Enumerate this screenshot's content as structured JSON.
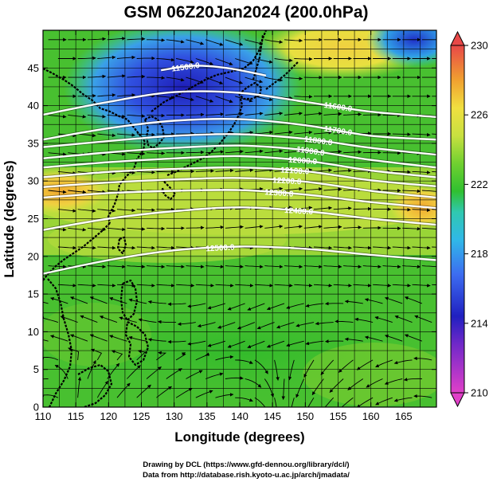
{
  "title": "GSM 06Z20Jan2024 (200.0hPa)",
  "xlabel": "Longitude (degrees)",
  "ylabel": "Latitude  (degrees)",
  "credits": [
    "Drawing by DCL (https://www.gfd-dennou.org/library/dcl/)",
    "Data from http://database.rish.kyoto-u.ac.jp/arch/jmadata/"
  ],
  "colors": {
    "min_magenta": "#e040c8",
    "dark_blue": "#2020c0",
    "blue": "#3c6cf0",
    "cyan": "#30c8d8",
    "green": "#30c030",
    "light_green": "#90d830",
    "yellow": "#f0e040",
    "orange": "#f0a030",
    "max_red": "#e84848",
    "contour": "#ffffff",
    "coastline": "#000000"
  },
  "chart_data": {
    "type": "heatmap",
    "map_type": "temperature shading with geopotential height contours and wind streamlines",
    "xlim": [
      110,
      170
    ],
    "ylim": [
      0,
      50
    ],
    "xticks": [
      110,
      115,
      120,
      125,
      130,
      135,
      140,
      145,
      150,
      155,
      160,
      165
    ],
    "yticks": [
      0,
      5,
      10,
      15,
      20,
      25,
      30,
      35,
      40,
      45
    ],
    "grid": true,
    "colorbar": {
      "min": 210,
      "max": 230,
      "ticks": [
        210,
        214,
        218,
        222,
        226,
        230
      ],
      "placement": "right",
      "extend": "both"
    },
    "contour_labels": [
      "11500.0",
      "11600.0",
      "11700.0",
      "11800.0",
      "11900.0",
      "12000.0",
      "12100.0",
      "12200.0",
      "12300.0",
      "12400.0",
      "12500.0"
    ],
    "contours": [
      {
        "level": "11500.0",
        "lon": [
          128,
          133,
          138,
          144
        ],
        "lat": [
          44.7,
          45.3,
          45.0,
          44.0
        ]
      },
      {
        "level": "11600.0",
        "lon": [
          110,
          120,
          130,
          140,
          150,
          160,
          170
        ],
        "lat": [
          38.8,
          40.5,
          41.8,
          41.7,
          40.5,
          39.2,
          38.5
        ]
      },
      {
        "level": "11700.0",
        "lon": [
          110,
          120,
          130,
          140,
          150,
          160,
          170
        ],
        "lat": [
          35.5,
          37.0,
          38.0,
          38.2,
          37.4,
          36.0,
          35.5
        ]
      },
      {
        "level": "11800.0",
        "lon": [
          110,
          120,
          130,
          140,
          150,
          160,
          170
        ],
        "lat": [
          34.5,
          35.3,
          36.0,
          36.2,
          35.6,
          34.4,
          33.5
        ]
      },
      {
        "level": "11900.0",
        "lon": [
          110,
          120,
          130,
          140,
          150,
          160,
          170
        ],
        "lat": [
          33.0,
          33.8,
          34.4,
          34.7,
          34.1,
          32.8,
          31.8
        ]
      },
      {
        "level": "12000.0",
        "lon": [
          110,
          120,
          130,
          140,
          150,
          160,
          170
        ],
        "lat": [
          31.8,
          32.5,
          33.0,
          33.3,
          32.7,
          31.4,
          30.5
        ]
      },
      {
        "level": "12100.0",
        "lon": [
          110,
          120,
          130,
          140,
          150,
          160,
          170
        ],
        "lat": [
          30.5,
          31.2,
          31.6,
          31.8,
          31.3,
          30.1,
          29.3
        ]
      },
      {
        "level": "12200.0",
        "lon": [
          110,
          120,
          130,
          140,
          150,
          160,
          170
        ],
        "lat": [
          29.2,
          29.8,
          30.2,
          30.4,
          29.9,
          28.7,
          27.8
        ]
      },
      {
        "level": "12300.0",
        "lon": [
          110,
          120,
          130,
          140,
          150,
          160,
          170
        ],
        "lat": [
          27.8,
          28.4,
          28.7,
          28.8,
          28.2,
          27.2,
          26.4
        ]
      },
      {
        "level": "12400.0",
        "lon": [
          110,
          120,
          130,
          140,
          150,
          160,
          170
        ],
        "lat": [
          23.5,
          25.0,
          26.0,
          26.5,
          26.0,
          25.0,
          24.2
        ]
      },
      {
        "level": "12500.0",
        "lon": [
          110,
          120,
          130,
          140,
          150,
          160,
          170
        ],
        "lat": [
          17.7,
          19.5,
          20.8,
          21.3,
          21.0,
          20.2,
          19.5
        ]
      }
    ]
  }
}
